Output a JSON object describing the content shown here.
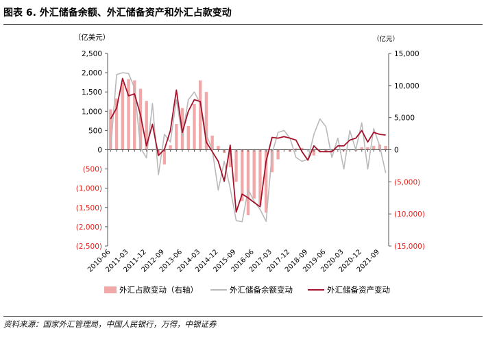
{
  "header": {
    "title": "图表 6. 外汇储备余额、外汇储备资产和外汇占款变动"
  },
  "footer": {
    "source": "资料来源：国家外汇管理局，中国人民银行，万得，中银证券"
  },
  "colors": {
    "bars": "#f0a8a8",
    "reserve_balance": "#b9b9b9",
    "reserve_assets": "#a3122a",
    "negative_tick": "#e3221d"
  },
  "chart_data": {
    "type": "bar+line",
    "title": "",
    "left_axis": {
      "unit_label": "（亿美元）",
      "range": [
        -2500,
        2500
      ],
      "ticks": [
        2500,
        2000,
        1500,
        1000,
        500,
        0,
        -500,
        -1000,
        -1500,
        -2000,
        -2500
      ],
      "tick_labels": [
        "2,500",
        "2,000",
        "1,500",
        "1,000",
        "500",
        "0",
        "(500)",
        "(1,000)",
        "(1,500)",
        "(2,000)",
        "(2,500)"
      ]
    },
    "right_axis": {
      "unit_label": "（亿元）",
      "range": [
        -15000,
        15000
      ],
      "ticks": [
        15000,
        10000,
        5000,
        0,
        -5000,
        -10000,
        -15000
      ],
      "tick_labels": [
        "15,000",
        "10,000",
        "5,000",
        "0",
        "(5,000)",
        "(10,000)",
        "(15,000)"
      ]
    },
    "x_tick_labels": [
      "2010-06",
      "2011-03",
      "2011-12",
      "2012-09",
      "2013-06",
      "2014-03",
      "2014-12",
      "2015-09",
      "2016-06",
      "2017-03",
      "2017-12",
      "2018-09",
      "2019-06",
      "2020-03",
      "2020-12",
      "2021-09"
    ],
    "categories": [
      "2010-06",
      "2010-09",
      "2010-12",
      "2011-03",
      "2011-06",
      "2011-09",
      "2011-12",
      "2012-03",
      "2012-06",
      "2012-09",
      "2012-12",
      "2013-03",
      "2013-06",
      "2013-09",
      "2013-12",
      "2014-03",
      "2014-06",
      "2014-09",
      "2014-12",
      "2015-03",
      "2015-06",
      "2015-09",
      "2015-12",
      "2016-03",
      "2016-06",
      "2016-09",
      "2016-12",
      "2017-03",
      "2017-06",
      "2017-09",
      "2017-12",
      "2018-03",
      "2018-06",
      "2018-09",
      "2018-12",
      "2019-03",
      "2019-06",
      "2019-09",
      "2019-12",
      "2020-03",
      "2020-06",
      "2020-09",
      "2020-12",
      "2021-03",
      "2021-06",
      "2021-09",
      "2021-12"
    ],
    "series": [
      {
        "name": "外汇占款变动（右轴）",
        "type": "bar",
        "axis": "right",
        "values": [
          6300,
          8000,
          10400,
          11000,
          10800,
          9500,
          7600,
          -100,
          -800,
          -2300,
          700,
          4000,
          6500,
          3700,
          7100,
          10800,
          9000,
          2200,
          600,
          -500,
          -2700,
          -5000,
          -8000,
          -10200,
          -7600,
          -8600,
          -9800,
          -3500,
          -1500,
          0,
          -300,
          200,
          300,
          0,
          -900,
          0,
          -400,
          0,
          0,
          -200,
          0,
          -200,
          400,
          400,
          600,
          800,
          600
        ]
      },
      {
        "name": "外汇储备余额变动",
        "type": "line",
        "axis": "left",
        "values": [
          0,
          1950,
          2000,
          1980,
          1600,
          50,
          -210,
          1200,
          -650,
          400,
          200,
          1300,
          350,
          1300,
          1500,
          1200,
          400,
          0,
          -1050,
          -300,
          -1000,
          -1840,
          -1870,
          -1030,
          -1340,
          -1550,
          -1860,
          -100,
          450,
          500,
          300,
          -200,
          -300,
          -250,
          400,
          800,
          600,
          -200,
          300,
          -500,
          500,
          0,
          700,
          -500,
          550,
          100,
          -600
        ]
      },
      {
        "name": "外汇储备资产变动",
        "type": "line",
        "axis": "left",
        "values": [
          800,
          1080,
          1850,
          1400,
          1450,
          900,
          100,
          660,
          -150,
          10,
          500,
          1550,
          450,
          1000,
          1300,
          1250,
          200,
          -50,
          -300,
          -820,
          120,
          -1620,
          -1150,
          -1250,
          -1370,
          -1480,
          -300,
          320,
          300,
          340,
          300,
          250,
          -50,
          -270,
          100,
          -50,
          -50,
          -50,
          100,
          100,
          250,
          300,
          500,
          200,
          450,
          400,
          380
        ]
      }
    ]
  }
}
